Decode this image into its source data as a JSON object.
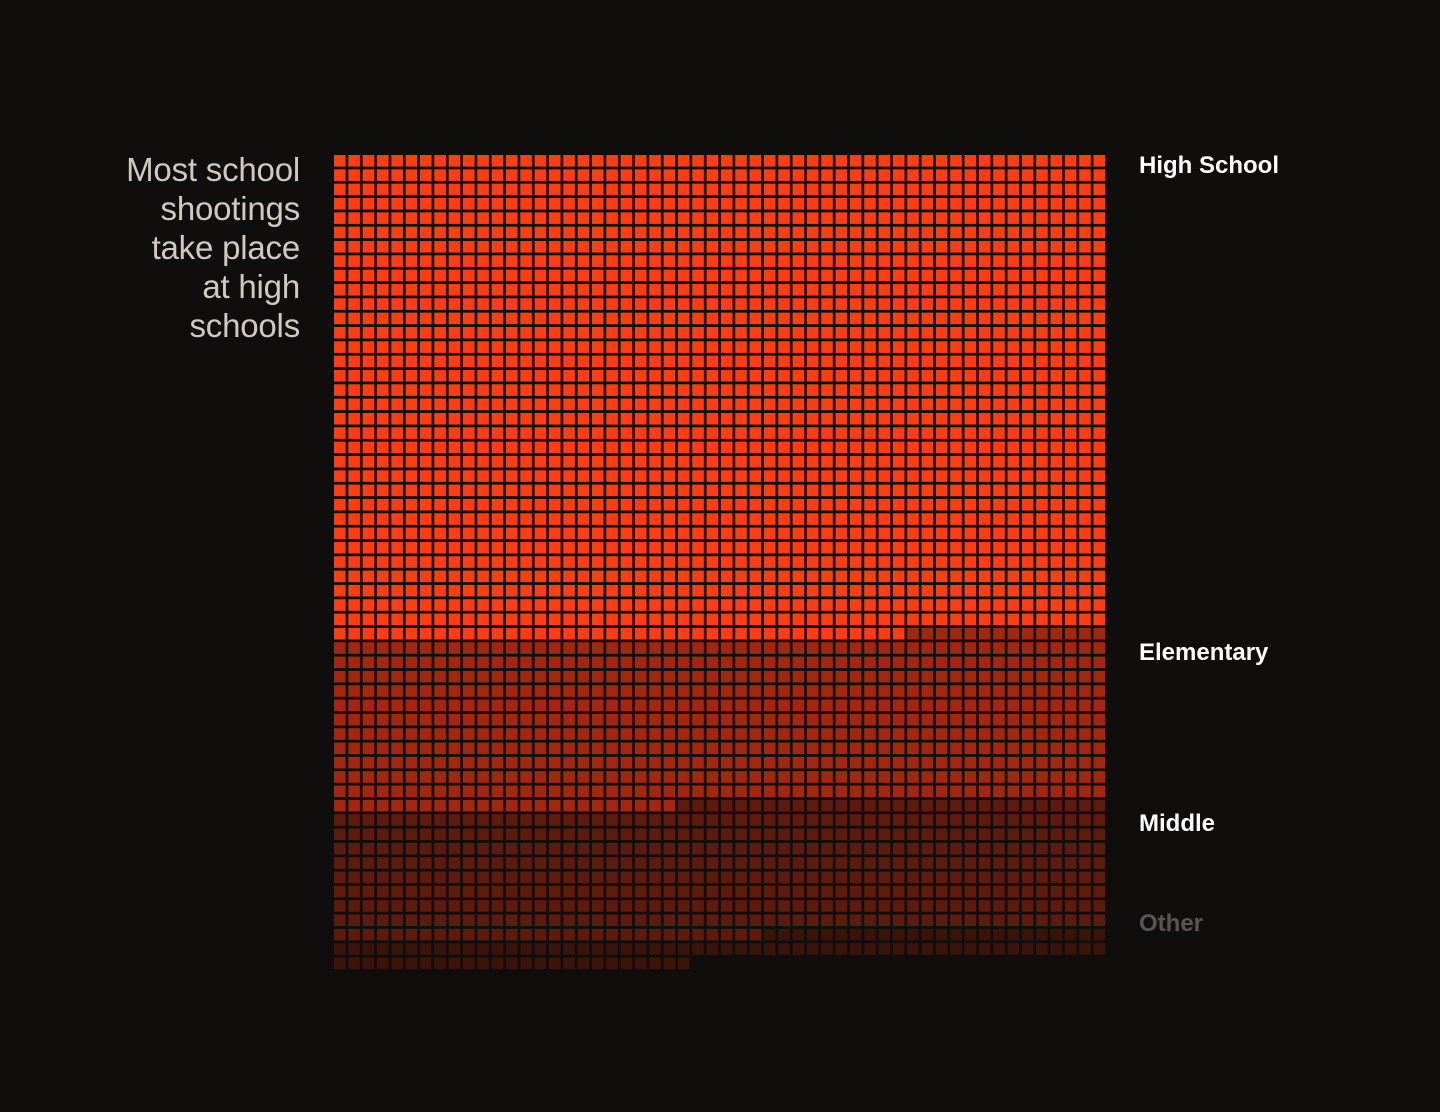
{
  "headline": "Most school shootings take place at high schools",
  "chart_data": {
    "type": "waffle",
    "unit": "school shooting",
    "cells_per_row": 54,
    "categories": [
      {
        "name": "High School",
        "value": 1822,
        "color": "#ff3d12",
        "label_color": "#ffffff"
      },
      {
        "name": "Elementary",
        "value": 632,
        "color": "#a3260e",
        "label_color": "#ffffff"
      },
      {
        "name": "Middle",
        "value": 492,
        "color": "#5e1a0d",
        "label_color": "#ffffff"
      },
      {
        "name": "Other",
        "value": 103,
        "color": "#3a1309",
        "label_color": "#5a5550"
      }
    ]
  }
}
